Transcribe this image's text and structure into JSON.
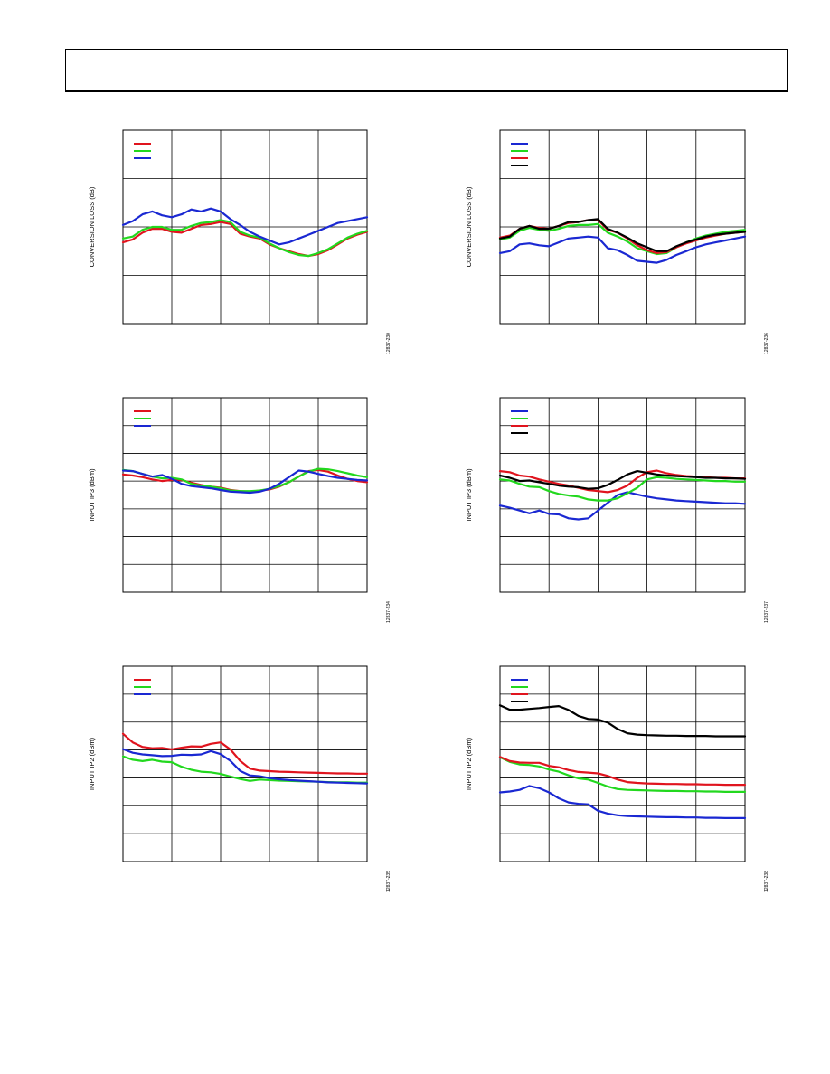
{
  "colors": {
    "red": "#e0141e",
    "green": "#22d81e",
    "blue": "#1a28d2",
    "black": "#000000",
    "grid": "#000000"
  },
  "chart_data": [
    {
      "type": "line",
      "ylabel": "CONVERSION LOSS (dB)",
      "code": "12837-230",
      "x": [
        0,
        2,
        4,
        6,
        8,
        10,
        12,
        14,
        16,
        18,
        20,
        22,
        24,
        26,
        28,
        30,
        32,
        34,
        36,
        38,
        40,
        42,
        44,
        46,
        48,
        50
      ],
      "xlim": [
        0,
        50
      ],
      "ylim": [
        0,
        20
      ],
      "grid_x": 5,
      "grid_y": 4,
      "series": [
        {
          "color": "red",
          "values": [
            8.4,
            8.7,
            9.4,
            9.8,
            9.8,
            9.5,
            9.4,
            9.8,
            10.2,
            10.3,
            10.5,
            10.3,
            9.3,
            9.0,
            8.8,
            8.2,
            7.8,
            7.5,
            7.2,
            7.0,
            7.2,
            7.6,
            8.2,
            8.8,
            9.2,
            9.5
          ]
        },
        {
          "color": "green",
          "values": [
            8.8,
            9.0,
            9.7,
            10.0,
            10.0,
            9.7,
            9.7,
            10.1,
            10.4,
            10.5,
            10.7,
            10.5,
            9.5,
            9.1,
            8.9,
            8.3,
            7.8,
            7.4,
            7.1,
            7.0,
            7.3,
            7.7,
            8.3,
            8.9,
            9.3,
            9.6
          ]
        },
        {
          "color": "blue",
          "values": [
            10.2,
            10.6,
            11.3,
            11.6,
            11.2,
            11.0,
            11.3,
            11.8,
            11.6,
            11.9,
            11.6,
            10.8,
            10.2,
            9.5,
            9.0,
            8.6,
            8.2,
            8.4,
            8.8,
            9.2,
            9.6,
            10.0,
            10.4,
            10.6,
            10.8,
            11.0
          ]
        }
      ]
    },
    {
      "type": "line",
      "ylabel": "CONVERSION LOSS (dB)",
      "code": "12837-236",
      "x": [
        0,
        2,
        4,
        6,
        8,
        10,
        12,
        14,
        16,
        18,
        20,
        22,
        24,
        26,
        28,
        30,
        32,
        34,
        36,
        38,
        40,
        42,
        44,
        46,
        48,
        50
      ],
      "xlim": [
        0,
        50
      ],
      "ylim": [
        0,
        20
      ],
      "grid_x": 5,
      "grid_y": 4,
      "series": [
        {
          "color": "blue",
          "values": [
            7.3,
            7.5,
            8.2,
            8.3,
            8.1,
            8.0,
            8.4,
            8.8,
            8.9,
            9.0,
            8.9,
            7.8,
            7.6,
            7.1,
            6.5,
            6.4,
            6.3,
            6.6,
            7.1,
            7.5,
            7.9,
            8.2,
            8.4,
            8.6,
            8.8,
            9.0
          ]
        },
        {
          "color": "green",
          "values": [
            8.7,
            8.9,
            9.6,
            9.9,
            9.7,
            9.6,
            9.8,
            10.1,
            10.2,
            10.2,
            10.3,
            9.4,
            9.0,
            8.5,
            7.8,
            7.5,
            7.2,
            7.3,
            7.9,
            8.4,
            8.8,
            9.1,
            9.3,
            9.5,
            9.6,
            9.7
          ]
        },
        {
          "color": "red",
          "values": [
            8.9,
            9.1,
            9.8,
            10.1,
            9.9,
            9.8,
            10.1,
            10.4,
            10.5,
            10.7,
            10.7,
            9.7,
            9.4,
            8.8,
            8.1,
            7.6,
            7.3,
            7.4,
            7.9,
            8.3,
            8.6,
            8.9,
            9.1,
            9.3,
            9.4,
            9.5
          ]
        },
        {
          "color": "black",
          "values": [
            8.8,
            9.0,
            9.8,
            10.1,
            9.8,
            9.8,
            10.1,
            10.5,
            10.5,
            10.7,
            10.8,
            9.8,
            9.4,
            8.9,
            8.3,
            7.9,
            7.5,
            7.5,
            8.0,
            8.4,
            8.7,
            9.0,
            9.2,
            9.3,
            9.4,
            9.5
          ]
        }
      ]
    },
    {
      "type": "line",
      "ylabel": "INPUT IP3 (dBm)",
      "code": "12837-234",
      "x": [
        0,
        2,
        4,
        6,
        8,
        10,
        12,
        14,
        16,
        18,
        20,
        22,
        24,
        26,
        28,
        30,
        32,
        34,
        36,
        38,
        40,
        42,
        44,
        46,
        48,
        50
      ],
      "xlim": [
        0,
        50
      ],
      "ylim": [
        0,
        35
      ],
      "grid_x": 5,
      "grid_y": 7,
      "series": [
        {
          "color": "red",
          "values": [
            21.2,
            21.0,
            20.7,
            20.3,
            20.0,
            20.2,
            20.2,
            19.7,
            19.3,
            19.0,
            18.8,
            18.4,
            18.2,
            18.1,
            18.3,
            18.5,
            19.0,
            19.8,
            20.8,
            21.8,
            22.0,
            21.7,
            21.0,
            20.4,
            20.0,
            19.8
          ]
        },
        {
          "color": "green",
          "values": [
            22.0,
            21.8,
            21.3,
            20.8,
            20.5,
            20.6,
            20.3,
            19.5,
            19.2,
            19.0,
            18.7,
            18.3,
            18.2,
            18.2,
            18.3,
            18.6,
            19.1,
            19.8,
            20.8,
            21.7,
            22.2,
            22.1,
            21.8,
            21.4,
            21.0,
            20.7
          ]
        },
        {
          "color": "blue",
          "values": [
            21.9,
            21.8,
            21.3,
            20.8,
            21.1,
            20.4,
            19.5,
            19.1,
            18.9,
            18.7,
            18.4,
            18.1,
            18.0,
            17.9,
            18.1,
            18.6,
            19.5,
            20.7,
            21.9,
            21.7,
            21.3,
            20.9,
            20.6,
            20.4,
            20.2,
            20.1
          ]
        }
      ]
    },
    {
      "type": "line",
      "ylabel": "INPUT IP3 (dBm)",
      "code": "12837-237",
      "x": [
        0,
        2,
        4,
        6,
        8,
        10,
        12,
        14,
        16,
        18,
        20,
        22,
        24,
        26,
        28,
        30,
        32,
        34,
        36,
        38,
        40,
        42,
        44,
        46,
        48,
        50
      ],
      "xlim": [
        0,
        50
      ],
      "ylim": [
        0,
        35
      ],
      "grid_x": 5,
      "grid_y": 7,
      "series": [
        {
          "color": "blue",
          "values": [
            15.6,
            15.2,
            14.7,
            14.2,
            14.7,
            14.1,
            14.0,
            13.3,
            13.1,
            13.3,
            14.7,
            16.1,
            17.5,
            18.0,
            17.6,
            17.2,
            16.9,
            16.7,
            16.5,
            16.4,
            16.3,
            16.2,
            16.1,
            16.0,
            16.0,
            15.9
          ]
        },
        {
          "color": "green",
          "values": [
            20.3,
            20.1,
            19.5,
            19.0,
            18.9,
            18.2,
            17.7,
            17.4,
            17.2,
            16.7,
            16.5,
            16.5,
            16.9,
            17.8,
            18.8,
            20.3,
            20.7,
            20.6,
            20.4,
            20.3,
            20.2,
            20.1,
            20.0,
            20.0,
            19.9,
            19.9
          ]
        },
        {
          "color": "red",
          "values": [
            21.8,
            21.6,
            21.0,
            20.8,
            20.3,
            19.9,
            19.5,
            19.2,
            18.8,
            18.4,
            18.2,
            18.0,
            18.4,
            19.2,
            20.6,
            21.6,
            21.9,
            21.4,
            21.1,
            20.9,
            20.8,
            20.7,
            20.6,
            20.6,
            20.5,
            20.5
          ]
        },
        {
          "color": "black",
          "values": [
            21.0,
            20.6,
            20.0,
            20.1,
            19.8,
            19.5,
            19.2,
            19.0,
            18.9,
            18.6,
            18.7,
            19.3,
            20.2,
            21.2,
            21.8,
            21.5,
            21.2,
            21.0,
            20.9,
            20.8,
            20.7,
            20.6,
            20.6,
            20.5,
            20.5,
            20.4
          ]
        }
      ]
    },
    {
      "type": "line",
      "ylabel": "INPUT IP2 (dBm)",
      "code": "12837-235",
      "x": [
        0,
        2,
        4,
        6,
        8,
        10,
        12,
        14,
        16,
        18,
        20,
        22,
        24,
        26,
        28,
        30,
        32,
        34,
        36,
        38,
        40,
        42,
        44,
        46,
        48,
        50
      ],
      "xlim": [
        0,
        50
      ],
      "ylim": [
        20,
        90
      ],
      "grid_x": 5,
      "grid_y": 7,
      "series": [
        {
          "color": "red",
          "values": [
            65.8,
            62.7,
            61.1,
            60.6,
            60.7,
            60.2,
            60.8,
            61.3,
            61.2,
            62.2,
            62.7,
            60.2,
            56.1,
            53.3,
            52.6,
            52.4,
            52.2,
            52.1,
            52.0,
            51.9,
            51.8,
            51.7,
            51.6,
            51.6,
            51.5,
            51.5
          ]
        },
        {
          "color": "green",
          "values": [
            57.7,
            56.5,
            56.0,
            56.5,
            55.8,
            55.6,
            54.0,
            52.9,
            52.2,
            52.0,
            51.4,
            50.5,
            49.6,
            48.9,
            49.4,
            49.2,
            49.0,
            48.9,
            48.8,
            48.7,
            48.6,
            48.5,
            48.4,
            48.4,
            48.3,
            48.3
          ]
        },
        {
          "color": "blue",
          "values": [
            60.3,
            59.0,
            58.4,
            58.1,
            57.8,
            57.9,
            58.3,
            58.2,
            58.4,
            59.6,
            58.5,
            56.1,
            52.5,
            50.9,
            50.6,
            49.9,
            49.5,
            49.2,
            49.0,
            48.8,
            48.6,
            48.4,
            48.3,
            48.2,
            48.1,
            48.0
          ]
        }
      ]
    },
    {
      "type": "line",
      "ylabel": "INPUT IP2 (dBm)",
      "code": "12837-238",
      "x": [
        0,
        2,
        4,
        6,
        8,
        10,
        12,
        14,
        16,
        18,
        20,
        22,
        24,
        26,
        28,
        30,
        32,
        34,
        36,
        38,
        40,
        42,
        44,
        46,
        48,
        50
      ],
      "xlim": [
        0,
        50
      ],
      "ylim": [
        20,
        90
      ],
      "grid_x": 5,
      "grid_y": 7,
      "series": [
        {
          "color": "blue",
          "values": [
            44.8,
            45.1,
            45.7,
            47.1,
            46.3,
            44.8,
            42.7,
            41.2,
            40.7,
            40.5,
            38.2,
            37.2,
            36.6,
            36.3,
            36.2,
            36.1,
            36.0,
            35.9,
            35.9,
            35.8,
            35.8,
            35.7,
            35.7,
            35.6,
            35.6,
            35.6
          ]
        },
        {
          "color": "green",
          "values": [
            57.4,
            55.7,
            54.8,
            54.6,
            54.1,
            53.0,
            52.2,
            50.9,
            49.8,
            49.4,
            48.2,
            46.9,
            46.0,
            45.7,
            45.6,
            45.5,
            45.4,
            45.3,
            45.3,
            45.2,
            45.2,
            45.1,
            45.1,
            45.0,
            45.0,
            45.0
          ]
        },
        {
          "color": "red",
          "values": [
            57.5,
            56.0,
            55.5,
            55.4,
            55.4,
            54.3,
            53.8,
            52.8,
            52.1,
            51.9,
            51.6,
            50.7,
            49.4,
            48.5,
            48.2,
            48.0,
            47.9,
            47.8,
            47.8,
            47.7,
            47.7,
            47.6,
            47.6,
            47.5,
            47.5,
            47.5
          ]
        },
        {
          "color": "black",
          "values": [
            76.0,
            74.4,
            74.4,
            74.7,
            75.0,
            75.4,
            75.7,
            74.3,
            72.2,
            71.1,
            70.9,
            69.8,
            67.5,
            66.0,
            65.5,
            65.3,
            65.2,
            65.1,
            65.1,
            65.0,
            65.0,
            65.0,
            64.9,
            64.9,
            64.9,
            64.9
          ]
        }
      ]
    }
  ]
}
